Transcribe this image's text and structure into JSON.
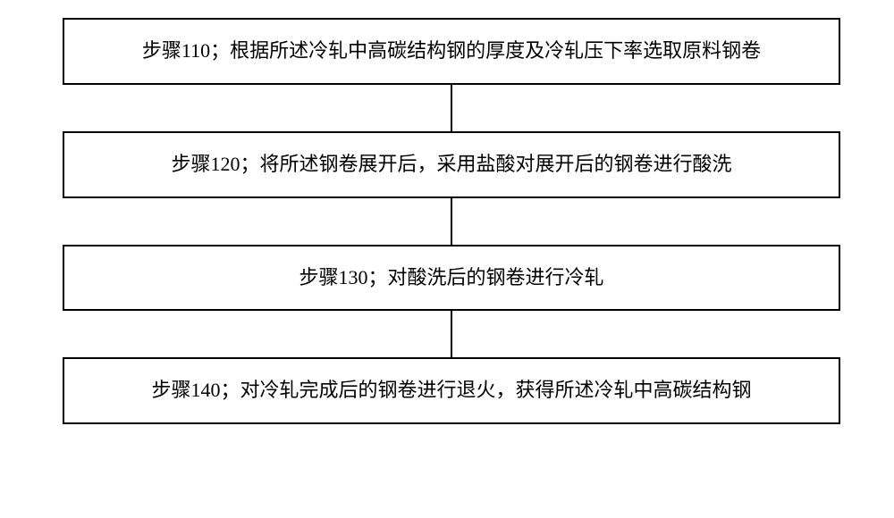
{
  "flowchart": {
    "type": "flowchart",
    "direction": "vertical",
    "node_border_color": "#000000",
    "node_border_width": 2,
    "node_background": "#ffffff",
    "connector_color": "#000000",
    "connector_width": 2,
    "connector_height": 52,
    "font_family": "SimSun",
    "font_size": 22,
    "text_color": "#000000",
    "nodes": [
      {
        "id": "step110",
        "label": "步骤110；根据所述冷轧中高碳结构钢的厚度及冷轧压下率选取原料钢卷"
      },
      {
        "id": "step120",
        "label": "步骤120；将所述钢卷展开后，采用盐酸对展开后的钢卷进行酸洗"
      },
      {
        "id": "step130",
        "label": "步骤130；对酸洗后的钢卷进行冷轧"
      },
      {
        "id": "step140",
        "label": "步骤140；对冷轧完成后的钢卷进行退火，获得所述冷轧中高碳结构钢"
      }
    ],
    "edges": [
      {
        "from": "step110",
        "to": "step120"
      },
      {
        "from": "step120",
        "to": "step130"
      },
      {
        "from": "step130",
        "to": "step140"
      }
    ]
  }
}
